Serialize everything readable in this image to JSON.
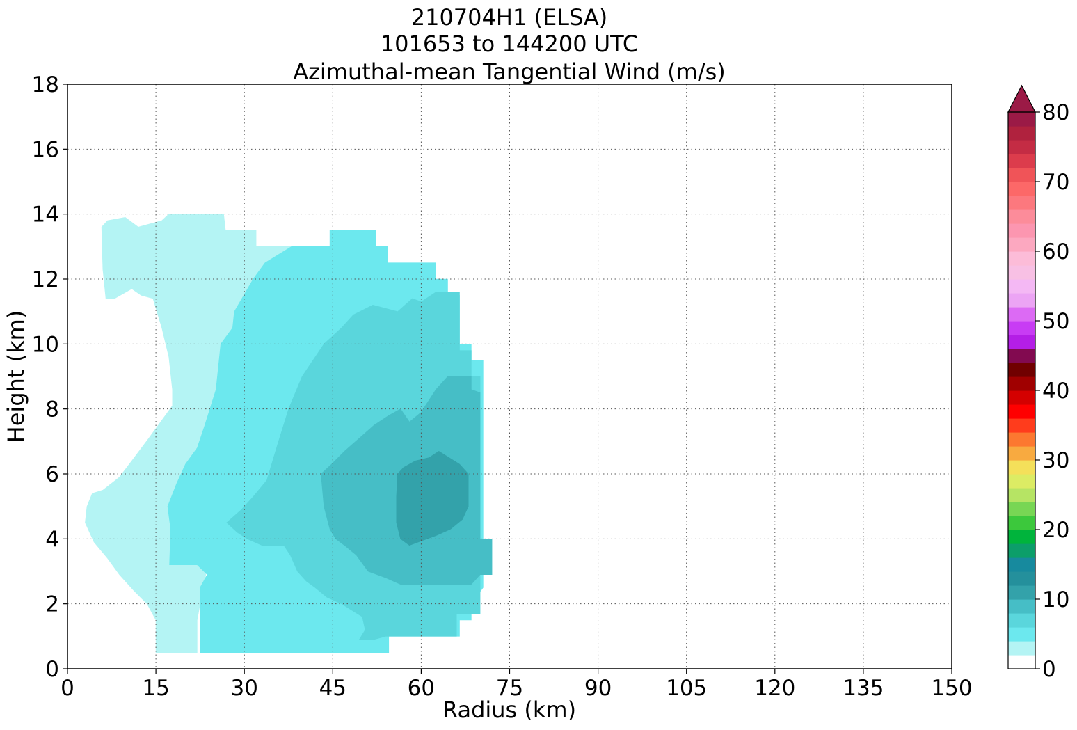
{
  "chart_data": {
    "type": "contour",
    "title_lines": [
      "210704H1 (ELSA)",
      "101653 to 144200 UTC",
      "Azimuthal-mean Tangential Wind (m/s)"
    ],
    "xlabel": "Radius (km)",
    "ylabel": "Height (km)",
    "xlim": [
      0,
      150
    ],
    "ylim": [
      0,
      18
    ],
    "xticks": [
      0,
      15,
      30,
      45,
      60,
      75,
      90,
      105,
      120,
      135,
      150
    ],
    "yticks": [
      0,
      2,
      4,
      6,
      8,
      10,
      12,
      14,
      16,
      18
    ],
    "grid": true,
    "colorbar": {
      "range": [
        0,
        80
      ],
      "step": 2,
      "ticks": [
        0,
        10,
        20,
        30,
        40,
        50,
        60,
        70,
        80
      ],
      "extend": "max",
      "extend_color": "#9b1a46",
      "colors": [
        "#ffffff",
        "#b4f4f4",
        "#6ce8ee",
        "#5ad6dc",
        "#46bec6",
        "#33a2aa",
        "#24909c",
        "#178a9e",
        "#0c9e6a",
        "#00b43c",
        "#3cc83c",
        "#78d654",
        "#b6e464",
        "#dcec64",
        "#f4e05a",
        "#f8aa40",
        "#fc7830",
        "#ff3c1c",
        "#ff0000",
        "#d40000",
        "#a00000",
        "#700000",
        "#820a50",
        "#b41ee6",
        "#c83cf4",
        "#dc6af4",
        "#eca4f4",
        "#f4b8f4",
        "#f8c0e4",
        "#fcbcd8",
        "#fca8c0",
        "#fc96b0",
        "#fc8c9a",
        "#fc787e",
        "#fc6868",
        "#f05458",
        "#dc3c4c",
        "#c42c44",
        "#b0223e",
        "#9b1a46"
      ]
    },
    "filled_contours": [
      {
        "level_min": 2,
        "color": "#b4f4f4",
        "polygon": [
          [
            15,
            0.5
          ],
          [
            15,
            1.5
          ],
          [
            13.5,
            2
          ],
          [
            11.3,
            2.4
          ],
          [
            8.8,
            2.9
          ],
          [
            6.8,
            3.4
          ],
          [
            4.5,
            3.9
          ],
          [
            3,
            4.5
          ],
          [
            3.3,
            5
          ],
          [
            4.2,
            5.4
          ],
          [
            6,
            5.5
          ],
          [
            8.8,
            5.9
          ],
          [
            10.9,
            6.4
          ],
          [
            13.8,
            7.1
          ],
          [
            15.8,
            7.6
          ],
          [
            17.8,
            8.1
          ],
          [
            17.8,
            8.6
          ],
          [
            17.2,
            9.6
          ],
          [
            16,
            10.5
          ],
          [
            14.5,
            11.4
          ],
          [
            12.5,
            11.5
          ],
          [
            10.9,
            11.7
          ],
          [
            8,
            11.4
          ],
          [
            6.5,
            11.4
          ],
          [
            6,
            12.3
          ],
          [
            5.8,
            13.6
          ],
          [
            6.8,
            13.8
          ],
          [
            9.8,
            13.9
          ],
          [
            12,
            13.6
          ],
          [
            16,
            13.8
          ],
          [
            17.2,
            14
          ],
          [
            26.5,
            14
          ],
          [
            26.8,
            13.5
          ],
          [
            32,
            13.5
          ],
          [
            32,
            13
          ],
          [
            38,
            13
          ],
          [
            36,
            12.2
          ],
          [
            33.5,
            11.5
          ],
          [
            31.9,
            9.5
          ],
          [
            30.5,
            7
          ],
          [
            27,
            5
          ],
          [
            24.5,
            3.8
          ],
          [
            23,
            2.5
          ],
          [
            22,
            1.5
          ],
          [
            22,
            0.5
          ]
        ]
      },
      {
        "level_min": 4,
        "color": "#6ce8ee",
        "polygon": [
          [
            22.5,
            0.5
          ],
          [
            22.5,
            2.5
          ],
          [
            23.7,
            2.9
          ],
          [
            22,
            3.2
          ],
          [
            17.3,
            3.2
          ],
          [
            17.5,
            4.3
          ],
          [
            17,
            5
          ],
          [
            18.5,
            5.7
          ],
          [
            20,
            6.3
          ],
          [
            22,
            6.8
          ],
          [
            23.3,
            7.5
          ],
          [
            25.2,
            8.6
          ],
          [
            26,
            10
          ],
          [
            28,
            10.5
          ],
          [
            28.3,
            11
          ],
          [
            31.5,
            12
          ],
          [
            33.5,
            12.5
          ],
          [
            38,
            13
          ],
          [
            44.5,
            13
          ],
          [
            44.5,
            13.5
          ],
          [
            52.3,
            13.5
          ],
          [
            52.3,
            13
          ],
          [
            54.3,
            13
          ],
          [
            54.3,
            12.5
          ],
          [
            62.5,
            12.5
          ],
          [
            62.5,
            12
          ],
          [
            64.5,
            12
          ],
          [
            64.5,
            11.5
          ],
          [
            66.5,
            11.5
          ],
          [
            66.5,
            10
          ],
          [
            68.5,
            10
          ],
          [
            68.5,
            9.5
          ],
          [
            70.5,
            9.5
          ],
          [
            70.5,
            2.5
          ],
          [
            68.5,
            2
          ],
          [
            68.5,
            1.5
          ],
          [
            66.5,
            1.5
          ],
          [
            66.5,
            1
          ],
          [
            64.5,
            1
          ],
          [
            54.5,
            1
          ],
          [
            54.5,
            0.5
          ]
        ]
      },
      {
        "level_min": 6,
        "color": "#5ad6dc",
        "polygon": [
          [
            27,
            4.5
          ],
          [
            28.8,
            4.2
          ],
          [
            30.5,
            4
          ],
          [
            33,
            3.8
          ],
          [
            36.7,
            3.8
          ],
          [
            37.8,
            3.5
          ],
          [
            39,
            3
          ],
          [
            40.5,
            2.7
          ],
          [
            42,
            2.5
          ],
          [
            44,
            2.2
          ],
          [
            46.5,
            2
          ],
          [
            50,
            1.6
          ],
          [
            50.5,
            1.2
          ],
          [
            49.5,
            0.9
          ],
          [
            52,
            0.9
          ],
          [
            54,
            1
          ],
          [
            66,
            1
          ],
          [
            66,
            1.7
          ],
          [
            70,
            1.7
          ],
          [
            70,
            2.2
          ],
          [
            70,
            9
          ],
          [
            68.5,
            9
          ],
          [
            68.5,
            9.8
          ],
          [
            66.5,
            9.8
          ],
          [
            66.5,
            11.6
          ],
          [
            62.5,
            11.6
          ],
          [
            60,
            11.3
          ],
          [
            58.5,
            11.4
          ],
          [
            56,
            11
          ],
          [
            51.8,
            11.2
          ],
          [
            48.5,
            10.9
          ],
          [
            46.5,
            10.5
          ],
          [
            43.5,
            10
          ],
          [
            39.8,
            9
          ],
          [
            37.5,
            8
          ],
          [
            35.8,
            7
          ],
          [
            33.8,
            5.8
          ],
          [
            31.5,
            5.3
          ],
          [
            29.5,
            4.9
          ]
        ]
      },
      {
        "level_min": 8,
        "color": "#46bec6",
        "polygon": [
          [
            43,
            6
          ],
          [
            43.5,
            5
          ],
          [
            44.5,
            4.3
          ],
          [
            45.5,
            4
          ],
          [
            47,
            3.8
          ],
          [
            49,
            3.5
          ],
          [
            51,
            3
          ],
          [
            54,
            2.8
          ],
          [
            56.5,
            2.6
          ],
          [
            61,
            2.6
          ],
          [
            64.5,
            2.6
          ],
          [
            68.5,
            2.6
          ],
          [
            70,
            2.9
          ],
          [
            72,
            2.9
          ],
          [
            72,
            4
          ],
          [
            70,
            4
          ],
          [
            70,
            8.5
          ],
          [
            68.5,
            8.6
          ],
          [
            68.5,
            9
          ],
          [
            66.5,
            9
          ],
          [
            64.5,
            9
          ],
          [
            62.5,
            8.6
          ],
          [
            60,
            7.9
          ],
          [
            58,
            7.6
          ],
          [
            56.5,
            8
          ],
          [
            54.5,
            7.8
          ],
          [
            52,
            7.5
          ],
          [
            49.5,
            7.1
          ],
          [
            47,
            6.7
          ],
          [
            44.8,
            6.3
          ]
        ]
      },
      {
        "level_min": 10,
        "color": "#33a2aa",
        "polygon": [
          [
            56.5,
            4
          ],
          [
            55.8,
            4.5
          ],
          [
            55.8,
            5.3
          ],
          [
            56,
            6
          ],
          [
            57,
            6.2
          ],
          [
            59,
            6.4
          ],
          [
            61.3,
            6.5
          ],
          [
            63,
            6.7
          ],
          [
            66.5,
            6.3
          ],
          [
            68,
            6
          ],
          [
            68,
            5
          ],
          [
            67,
            4.6
          ],
          [
            65,
            4.3
          ],
          [
            62.5,
            4.1
          ],
          [
            59.5,
            3.9
          ],
          [
            58,
            3.8
          ]
        ]
      }
    ]
  }
}
